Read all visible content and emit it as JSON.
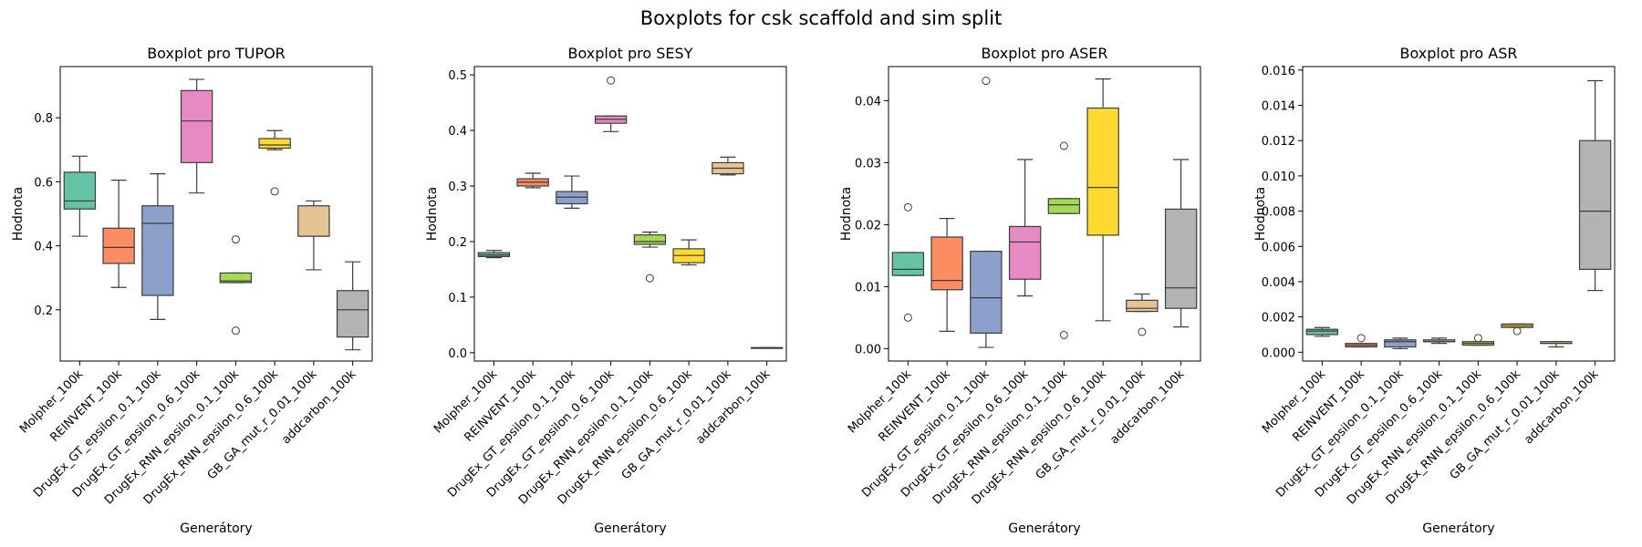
{
  "figure_title": "Boxplots for csk scaffold and sim split",
  "categories": [
    "Molpher_100k",
    "REINVENT_100k",
    "DrugEx_GT_epsilon_0.1_100k",
    "DrugEx_GT_epsilon_0.6_100k",
    "DrugEx_RNN_epsilon_0.1_100k",
    "DrugEx_RNN_epsilon_0.6_100k",
    "GB_GA_mut_r_0.01_100k",
    "addcarbon_100k"
  ],
  "colors": [
    "#66c2a5",
    "#fc8d62",
    "#8da0cb",
    "#e78ac3",
    "#a6d854",
    "#ffd92f",
    "#e5c494",
    "#b3b3b3"
  ],
  "chart_data": [
    {
      "type": "box",
      "title": "Boxplot pro TUPOR",
      "xlabel": "Generátory",
      "ylabel": "Hodnota",
      "ylim": [
        0.04,
        0.96
      ],
      "yticks": [
        0.2,
        0.4,
        0.6,
        0.8
      ],
      "ytick_labels": [
        "0.2",
        "0.4",
        "0.6",
        "0.8"
      ],
      "boxes": [
        {
          "whislo": 0.43,
          "q1": 0.515,
          "med": 0.54,
          "q3": 0.63,
          "whishi": 0.68,
          "fliers": []
        },
        {
          "whislo": 0.27,
          "q1": 0.345,
          "med": 0.395,
          "q3": 0.455,
          "whishi": 0.605,
          "fliers": []
        },
        {
          "whislo": 0.17,
          "q1": 0.245,
          "med": 0.47,
          "q3": 0.525,
          "whishi": 0.625,
          "fliers": []
        },
        {
          "whislo": 0.565,
          "q1": 0.66,
          "med": 0.79,
          "q3": 0.885,
          "whishi": 0.92,
          "fliers": []
        },
        {
          "whislo": 0.285,
          "q1": 0.285,
          "med": 0.29,
          "q3": 0.315,
          "whishi": 0.315,
          "fliers": [
            0.42,
            0.135
          ]
        },
        {
          "whislo": 0.7,
          "q1": 0.705,
          "med": 0.715,
          "q3": 0.735,
          "whishi": 0.76,
          "fliers": [
            0.57
          ]
        },
        {
          "whislo": 0.325,
          "q1": 0.43,
          "med": 0.43,
          "q3": 0.525,
          "whishi": 0.54,
          "fliers": []
        },
        {
          "whislo": 0.075,
          "q1": 0.115,
          "med": 0.2,
          "q3": 0.26,
          "whishi": 0.35,
          "fliers": []
        }
      ]
    },
    {
      "type": "box",
      "title": "Boxplot pro SESY",
      "xlabel": "Generátory",
      "ylabel": "Hodnota",
      "ylim": [
        -0.015,
        0.515
      ],
      "yticks": [
        0.0,
        0.1,
        0.2,
        0.3,
        0.4,
        0.5
      ],
      "ytick_labels": [
        "0.0",
        "0.1",
        "0.2",
        "0.3",
        "0.4",
        "0.5"
      ],
      "boxes": [
        {
          "whislo": 0.171,
          "q1": 0.173,
          "med": 0.176,
          "q3": 0.18,
          "whishi": 0.184,
          "fliers": []
        },
        {
          "whislo": 0.297,
          "q1": 0.3,
          "med": 0.307,
          "q3": 0.313,
          "whishi": 0.323,
          "fliers": []
        },
        {
          "whislo": 0.26,
          "q1": 0.268,
          "med": 0.28,
          "q3": 0.29,
          "whishi": 0.318,
          "fliers": []
        },
        {
          "whislo": 0.398,
          "q1": 0.413,
          "med": 0.42,
          "q3": 0.426,
          "whishi": 0.426,
          "fliers": [
            0.49
          ]
        },
        {
          "whislo": 0.19,
          "q1": 0.195,
          "med": 0.2,
          "q3": 0.212,
          "whishi": 0.217,
          "fliers": [
            0.134
          ]
        },
        {
          "whislo": 0.158,
          "q1": 0.162,
          "med": 0.175,
          "q3": 0.187,
          "whishi": 0.203,
          "fliers": []
        },
        {
          "whislo": 0.32,
          "q1": 0.322,
          "med": 0.332,
          "q3": 0.342,
          "whishi": 0.352,
          "fliers": []
        },
        {
          "whislo": 0.009,
          "q1": 0.009,
          "med": 0.009,
          "q3": 0.009,
          "whishi": 0.009,
          "fliers": []
        }
      ]
    },
    {
      "type": "box",
      "title": "Boxplot pro ASER",
      "xlabel": "Generátory",
      "ylabel": "Hodnota",
      "ylim": [
        -0.002,
        0.0455
      ],
      "yticks": [
        0.0,
        0.01,
        0.02,
        0.03,
        0.04
      ],
      "ytick_labels": [
        "0.00",
        "0.01",
        "0.02",
        "0.03",
        "0.04"
      ],
      "boxes": [
        {
          "whislo": 0.0118,
          "q1": 0.0118,
          "med": 0.0128,
          "q3": 0.0155,
          "whishi": 0.0155,
          "fliers": [
            0.0228,
            0.005
          ]
        },
        {
          "whislo": 0.0028,
          "q1": 0.0095,
          "med": 0.011,
          "q3": 0.018,
          "whishi": 0.021,
          "fliers": []
        },
        {
          "whislo": 0.0002,
          "q1": 0.0025,
          "med": 0.0082,
          "q3": 0.0157,
          "whishi": 0.0157,
          "fliers": [
            0.0432
          ]
        },
        {
          "whislo": 0.0085,
          "q1": 0.0112,
          "med": 0.0172,
          "q3": 0.0197,
          "whishi": 0.0305,
          "fliers": []
        },
        {
          "whislo": 0.0218,
          "q1": 0.0218,
          "med": 0.0232,
          "q3": 0.0242,
          "whishi": 0.0242,
          "fliers": [
            0.0327,
            0.0022
          ]
        },
        {
          "whislo": 0.0045,
          "q1": 0.0183,
          "med": 0.026,
          "q3": 0.0388,
          "whishi": 0.0435,
          "fliers": []
        },
        {
          "whislo": 0.006,
          "q1": 0.006,
          "med": 0.0065,
          "q3": 0.0078,
          "whishi": 0.0088,
          "fliers": [
            0.0027
          ]
        },
        {
          "whislo": 0.0035,
          "q1": 0.0065,
          "med": 0.0098,
          "q3": 0.0225,
          "whishi": 0.0305,
          "fliers": []
        }
      ]
    },
    {
      "type": "box",
      "title": "Boxplot pro ASR",
      "xlabel": "Generátory",
      "ylabel": "Hodnota",
      "ylim": [
        -0.0005,
        0.0162
      ],
      "yticks": [
        0.0,
        0.002,
        0.004,
        0.006,
        0.008,
        0.01,
        0.012,
        0.014,
        0.016
      ],
      "ytick_labels": [
        "0.000",
        "0.002",
        "0.004",
        "0.006",
        "0.008",
        "0.010",
        "0.012",
        "0.014",
        "0.016"
      ],
      "boxes": [
        {
          "whislo": 0.0009,
          "q1": 0.001,
          "med": 0.0012,
          "q3": 0.0013,
          "whishi": 0.0014,
          "fliers": []
        },
        {
          "whislo": 0.0003,
          "q1": 0.0003,
          "med": 0.0004,
          "q3": 0.0005,
          "whishi": 0.0005,
          "fliers": [
            0.0008
          ]
        },
        {
          "whislo": 0.0002,
          "q1": 0.0003,
          "med": 0.0006,
          "q3": 0.0007,
          "whishi": 0.0008,
          "fliers": []
        },
        {
          "whislo": 0.0005,
          "q1": 0.0006,
          "med": 0.0006,
          "q3": 0.0007,
          "whishi": 0.0008,
          "fliers": []
        },
        {
          "whislo": 0.0004,
          "q1": 0.0004,
          "med": 0.0005,
          "q3": 0.0006,
          "whishi": 0.0006,
          "fliers": [
            0.0008
          ]
        },
        {
          "whislo": 0.0014,
          "q1": 0.0014,
          "med": 0.0015,
          "q3": 0.0016,
          "whishi": 0.0016,
          "fliers": [
            0.0012
          ]
        },
        {
          "whislo": 0.0003,
          "q1": 0.0005,
          "med": 0.0005,
          "q3": 0.0006,
          "whishi": 0.0006,
          "fliers": []
        },
        {
          "whislo": 0.0035,
          "q1": 0.0047,
          "med": 0.008,
          "q3": 0.012,
          "whishi": 0.0154,
          "fliers": []
        }
      ]
    }
  ]
}
